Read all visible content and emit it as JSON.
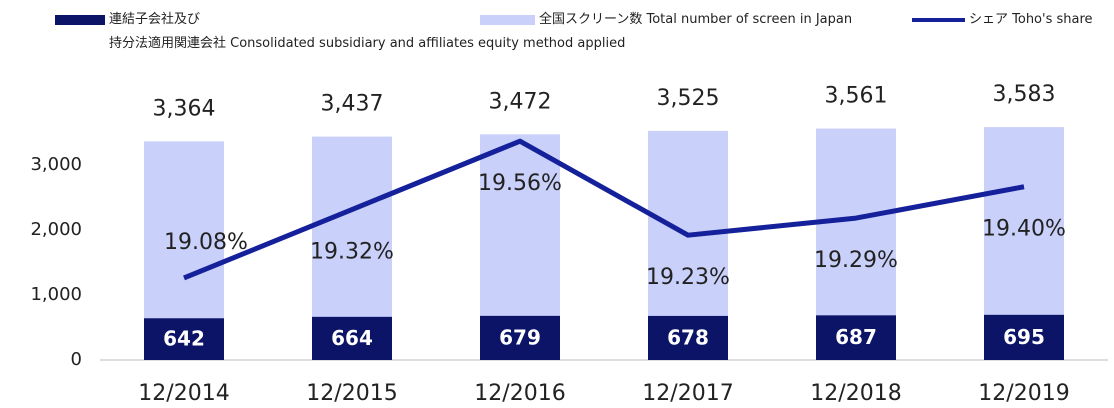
{
  "chart_data": {
    "type": "bar",
    "categories": [
      "12/2014",
      "12/2015",
      "12/2016",
      "12/2017",
      "12/2018",
      "12/2019"
    ],
    "series": [
      {
        "name": "全国スクリーン数 Total number of screen in Japan",
        "color": "#c9d0fa",
        "type": "bar",
        "values": [
          3364,
          3437,
          3472,
          3525,
          3561,
          3583
        ],
        "value_labels": [
          "3,364",
          "3,437",
          "3,472",
          "3,525",
          "3,561",
          "3,583"
        ]
      },
      {
        "name": "連結子会社及び\n持分法適用関連会社 Consolidated subsidiary and affiliates equity method applied",
        "color": "#0b1466",
        "type": "bar",
        "values": [
          642,
          664,
          679,
          678,
          687,
          695
        ]
      },
      {
        "name": "シェア Toho's share",
        "color": "#15219a",
        "type": "line",
        "axis": "y2",
        "values": [
          19.08,
          19.32,
          19.56,
          19.23,
          19.29,
          19.4
        ],
        "value_labels": [
          "19.08%",
          "19.32%",
          "19.56%",
          "19.23%",
          "19.29%",
          "19.40%"
        ]
      }
    ],
    "ylim": [
      0,
      3700
    ],
    "yticks": [
      0,
      {
        "value": 1000,
        "label": "1,000"
      },
      {
        "value": 2000,
        "label": "2,000"
      },
      {
        "value": 3000,
        "label": "3,000"
      }
    ],
    "y2lim": [
      18.792,
      19.636
    ],
    "grid": false,
    "legend": "top"
  }
}
